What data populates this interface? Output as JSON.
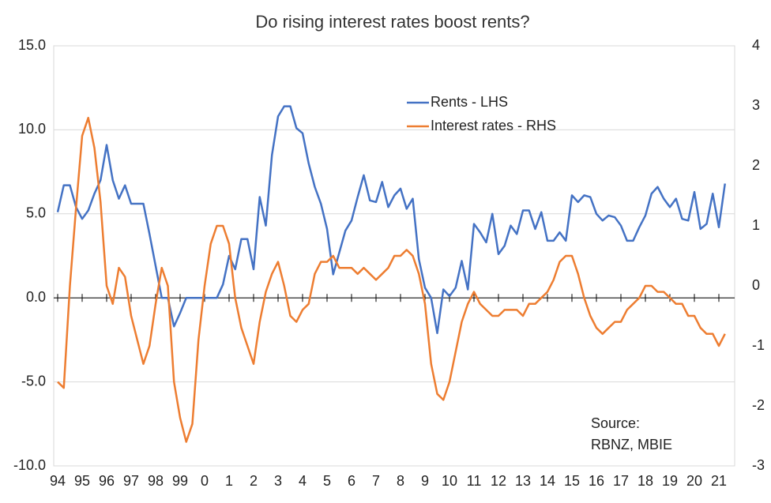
{
  "chart_data": {
    "type": "line",
    "title": "Do rising interest rates boost rents?",
    "categories": [
      "94",
      null,
      null,
      null,
      "95",
      null,
      null,
      null,
      "96",
      null,
      null,
      null,
      "97",
      null,
      null,
      null,
      "98",
      null,
      null,
      null,
      "99",
      null,
      null,
      null,
      "0",
      null,
      null,
      null,
      "1",
      null,
      null,
      null,
      "2",
      null,
      null,
      null,
      "3",
      null,
      null,
      null,
      "4",
      null,
      null,
      null,
      "5",
      null,
      null,
      null,
      "6",
      null,
      null,
      null,
      "7",
      null,
      null,
      null,
      "8",
      null,
      null,
      null,
      "9",
      null,
      null,
      null,
      "10",
      null,
      null,
      null,
      "11",
      null,
      null,
      null,
      "12",
      null,
      null,
      null,
      "13",
      null,
      null,
      null,
      "14",
      null,
      null,
      null,
      "15",
      null,
      null,
      null,
      "16",
      null,
      null,
      null,
      "17",
      null,
      null,
      null,
      "18",
      null,
      null,
      null,
      "19",
      null,
      null,
      null,
      "20",
      null,
      null,
      null,
      "21",
      null
    ],
    "series": [
      {
        "name": "Rents - LHS",
        "color": "#4472c4",
        "axis": "y",
        "values": [
          5.1,
          6.7,
          6.7,
          5.4,
          4.7,
          5.2,
          6.2,
          7.0,
          9.1,
          7.0,
          5.9,
          6.7,
          5.6,
          5.6,
          5.6,
          3.8,
          1.9,
          0.0,
          0.0,
          -1.7,
          -0.9,
          0,
          0,
          0,
          0,
          0,
          0,
          0.8,
          2.5,
          1.7,
          3.5,
          3.5,
          1.7,
          6.0,
          4.3,
          8.5,
          10.8,
          11.4,
          11.4,
          10.1,
          9.8,
          8.0,
          6.6,
          5.6,
          4.1,
          1.4,
          2.7,
          4.0,
          4.6,
          6.0,
          7.3,
          5.8,
          5.7,
          6.9,
          5.4,
          6.1,
          6.5,
          5.3,
          5.9,
          2.3,
          0.6,
          0.0,
          -2.1,
          0.5,
          0.1,
          0.6,
          2.2,
          0.5,
          4.4,
          3.9,
          3.3,
          5.0,
          2.6,
          3.1,
          4.3,
          3.8,
          5.2,
          5.2,
          4.1,
          5.1,
          3.4,
          3.4,
          3.9,
          3.4,
          6.1,
          5.7,
          6.1,
          6.0,
          5.0,
          4.6,
          4.9,
          4.8,
          4.3,
          3.4,
          3.4,
          4.2,
          4.9,
          6.2,
          6.6,
          5.9,
          5.4,
          5.9,
          4.7,
          4.6,
          6.3,
          4.1,
          4.4,
          6.2,
          4.2,
          6.8
        ]
      },
      {
        "name": "Interest rates - RHS",
        "color": "#ed7d31",
        "axis": "y2",
        "values": [
          -1.6,
          -1.7,
          0.0,
          1.3,
          2.5,
          2.8,
          2.3,
          1.4,
          0.0,
          -0.3,
          0.3,
          0.15,
          -0.5,
          -0.9,
          -1.3,
          -1.0,
          -0.3,
          0.3,
          0.0,
          -1.6,
          -2.2,
          -2.6,
          -2.3,
          -0.9,
          0.0,
          0.7,
          1.0,
          1.0,
          0.7,
          -0.2,
          -0.7,
          -1.0,
          -1.3,
          -0.6,
          -0.1,
          0.2,
          0.4,
          0.0,
          -0.5,
          -0.6,
          -0.4,
          -0.3,
          0.2,
          0.4,
          0.4,
          0.5,
          0.3,
          0.3,
          0.3,
          0.2,
          0.3,
          0.2,
          0.1,
          0.2,
          0.3,
          0.5,
          0.5,
          0.6,
          0.5,
          0.2,
          -0.3,
          -1.3,
          -1.8,
          -1.9,
          -1.6,
          -1.1,
          -0.6,
          -0.3,
          -0.1,
          -0.3,
          -0.4,
          -0.5,
          -0.5,
          -0.4,
          -0.4,
          -0.4,
          -0.5,
          -0.3,
          -0.3,
          -0.2,
          -0.1,
          0.1,
          0.4,
          0.5,
          0.5,
          0.2,
          -0.2,
          -0.5,
          -0.7,
          -0.8,
          -0.7,
          -0.6,
          -0.6,
          -0.4,
          -0.3,
          -0.2,
          0.0,
          0.0,
          -0.1,
          -0.1,
          -0.2,
          -0.3,
          -0.3,
          -0.5,
          -0.5,
          -0.7,
          -0.8,
          -0.8,
          -1.0,
          -0.8
        ]
      }
    ],
    "ylim": [
      -10,
      15
    ],
    "yticks": [
      {
        "value": -10,
        "label": "-10.0"
      },
      {
        "value": -5,
        "label": "-5.0"
      },
      {
        "value": 0,
        "label": "0.0"
      },
      {
        "value": 5,
        "label": "5.0"
      },
      {
        "value": 10,
        "label": "10.0"
      },
      {
        "value": 15,
        "label": "15.0"
      }
    ],
    "y2lim": [
      -3,
      4
    ],
    "y2ticks": [
      -3,
      -2,
      -1,
      0,
      1,
      2,
      3,
      4
    ],
    "grid": true,
    "legend": "top",
    "annotations": [
      "Source:",
      "RBNZ, MBIE"
    ]
  }
}
